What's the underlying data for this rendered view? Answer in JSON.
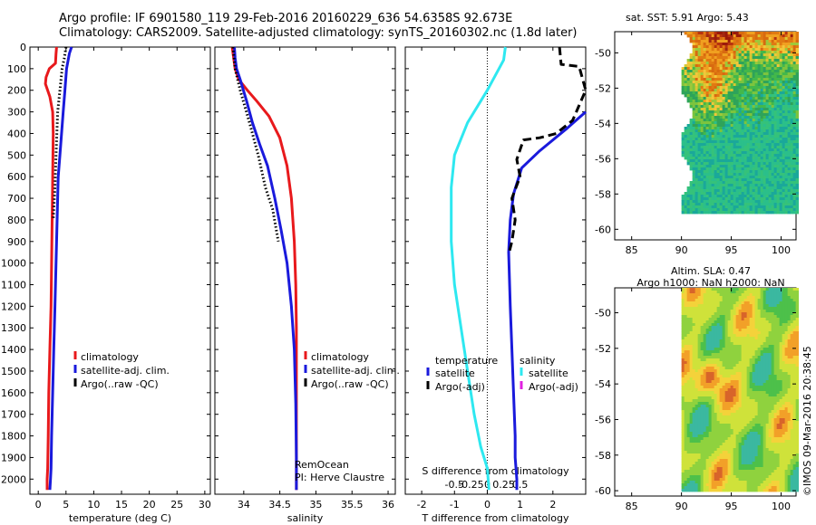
{
  "header": {
    "line1": "Argo profile: IF 6901580_119 29-Feb-2016 20160229_636 54.6358S 92.673E",
    "line2": "Climatology: CARS2009. Satellite-adjusted climatology: synTS_20160302.nc (1.8d later)"
  },
  "colors": {
    "climatology": "#e8191c",
    "satellite": "#1a1adc",
    "argo": "#000000",
    "cyan": "#2ee8f0",
    "magenta": "#e020e0"
  },
  "chart_data": [
    {
      "id": "temperature",
      "type": "line",
      "xlabel": "temperature (deg C)",
      "xlim": [
        -1.5,
        31
      ],
      "xticks": [
        0,
        5,
        10,
        15,
        20,
        25,
        30
      ],
      "ylim": [
        2070,
        0
      ],
      "yticks": [
        0,
        100,
        200,
        300,
        400,
        500,
        600,
        700,
        800,
        900,
        1000,
        1100,
        1200,
        1300,
        1400,
        1500,
        1600,
        1700,
        1800,
        1900,
        2000
      ],
      "series": [
        {
          "name": "climatology",
          "color": "#e8191c",
          "style": "solid",
          "width": 3,
          "x": [
            3.3,
            3.2,
            3.1,
            2.0,
            1.4,
            1.3,
            2.1,
            2.6,
            2.7,
            2.6,
            2.5,
            2.4,
            2.3,
            2.1,
            1.9,
            1.8,
            1.7,
            1.6,
            1.6
          ],
          "y": [
            0,
            30,
            75,
            100,
            140,
            170,
            230,
            300,
            400,
            600,
            800,
            1000,
            1200,
            1400,
            1600,
            1800,
            1950,
            2000,
            2050
          ]
        },
        {
          "name": "satellite-adj. clim.",
          "color": "#1a1adc",
          "style": "solid",
          "width": 3,
          "x": [
            6.0,
            5.6,
            5.1,
            4.8,
            4.5,
            4.2,
            3.9,
            3.6,
            3.4,
            3.2,
            3.0,
            2.8,
            2.6,
            2.4,
            2.3,
            2.2,
            2.1
          ],
          "y": [
            0,
            30,
            100,
            200,
            300,
            400,
            500,
            600,
            800,
            1000,
            1200,
            1400,
            1600,
            1800,
            1950,
            2000,
            2050
          ]
        },
        {
          "name": "Argo(..raw -QC)",
          "color": "#000000",
          "style": "dotted",
          "width": 3,
          "x": [
            5.0,
            4.7,
            4.3,
            3.9,
            3.5,
            3.2,
            3.0,
            2.7
          ],
          "y": [
            0,
            50,
            100,
            200,
            300,
            500,
            650,
            800
          ]
        }
      ],
      "legend": {
        "position": "lower-right",
        "entries": [
          "climatology",
          "satellite-adj. clim.",
          "Argo(..raw -QC)"
        ]
      }
    },
    {
      "id": "salinity",
      "type": "line",
      "xlabel": "salinity",
      "xlim": [
        33.6,
        36.1
      ],
      "xticks": [
        34,
        34.5,
        35,
        35.5,
        36
      ],
      "xticklabels": [
        "34",
        "34.5",
        "35",
        "35.5",
        "36"
      ],
      "ylim": [
        2070,
        0
      ],
      "series": [
        {
          "name": "climatology",
          "color": "#e8191c",
          "style": "solid",
          "width": 3,
          "x": [
            33.84,
            33.86,
            33.88,
            33.93,
            34.05,
            34.18,
            34.35,
            34.5,
            34.6,
            34.66,
            34.7,
            34.72,
            34.73,
            34.73,
            34.73,
            34.73
          ],
          "y": [
            0,
            50,
            100,
            150,
            200,
            250,
            320,
            420,
            550,
            700,
            900,
            1100,
            1300,
            1600,
            1900,
            2050
          ]
        },
        {
          "name": "satellite-adj. clim.",
          "color": "#1a1adc",
          "style": "solid",
          "width": 3,
          "x": [
            33.87,
            33.88,
            33.9,
            33.95,
            34.04,
            34.12,
            34.22,
            34.33,
            34.43,
            34.52,
            34.6,
            34.66,
            34.7,
            34.72,
            34.73,
            34.73
          ],
          "y": [
            0,
            50,
            100,
            150,
            250,
            350,
            450,
            550,
            700,
            850,
            1000,
            1200,
            1400,
            1650,
            1900,
            2050
          ]
        },
        {
          "name": "Argo(..raw -QC)",
          "color": "#000000",
          "style": "dotted",
          "width": 3,
          "x": [
            33.85,
            33.88,
            33.95,
            34.08,
            34.2,
            34.3,
            34.4,
            34.48
          ],
          "y": [
            0,
            100,
            200,
            350,
            500,
            650,
            750,
            900
          ]
        }
      ],
      "legend": {
        "position": "lower-right",
        "entries": [
          "climatology",
          "satellite-adj. clim.",
          "Argo(..raw -QC)"
        ]
      },
      "annotations": [
        "RemOcean",
        "PI: Herve Claustre"
      ]
    },
    {
      "id": "difference",
      "type": "line",
      "xlabel": "T difference from climatology",
      "xlim": [
        -2.5,
        3.0
      ],
      "xticks": [
        -2,
        -1,
        0,
        1,
        2
      ],
      "top_axis_label": "S difference from climatology",
      "top_ticks": [
        -0.5,
        -0.25,
        0,
        0.25,
        0.5
      ],
      "top_ticklabels": [
        "-0.5",
        "-0.25",
        "0",
        "0.25",
        "0.5"
      ],
      "ylim": [
        2070,
        0
      ],
      "series": [
        {
          "name": "salinity satellite",
          "color": "#2ee8f0",
          "style": "solid",
          "width": 3,
          "x": [
            0.55,
            0.5,
            0.0,
            -0.6,
            -1.0,
            -1.1,
            -1.1,
            -1.0,
            -0.8,
            -0.6,
            -0.4,
            -0.2,
            0.0,
            0.05
          ],
          "y": [
            0,
            60,
            200,
            350,
            500,
            650,
            900,
            1100,
            1300,
            1500,
            1700,
            1850,
            1950,
            2050
          ]
        },
        {
          "name": "temperature satellite",
          "color": "#1a1adc",
          "style": "solid",
          "width": 3,
          "x": [
            3.0,
            2.4,
            1.6,
            1.05,
            0.8,
            0.7,
            0.65,
            0.7,
            0.75,
            0.8,
            0.85,
            0.85,
            0.9,
            0.9
          ],
          "y": [
            300,
            380,
            480,
            560,
            680,
            800,
            950,
            1200,
            1400,
            1600,
            1800,
            1900,
            2000,
            2050
          ]
        },
        {
          "name": "temperature Argo(-adj)",
          "color": "#000000",
          "style": "dashed",
          "width": 3,
          "x": [
            2.2,
            2.25,
            2.8,
            3.0,
            2.6,
            2.1,
            1.6,
            1.1,
            0.9,
            1.0,
            0.75,
            0.85,
            0.75,
            0.65
          ],
          "y": [
            0,
            80,
            90,
            200,
            340,
            400,
            420,
            430,
            520,
            600,
            700,
            800,
            900,
            960
          ]
        },
        {
          "name": "salinity Argo(-adj)",
          "color": "#e020e0",
          "style": "solid",
          "width": 3,
          "x": [],
          "y": []
        }
      ],
      "legend": {
        "position": "lower-center",
        "left_header": "temperature",
        "right_header": "salinity",
        "entries": [
          "satellite",
          "Argo(-adj)",
          "satellite",
          "Argo(-adj)"
        ]
      }
    },
    {
      "id": "sst-map",
      "type": "heatmap",
      "title": "sat. SST: 5.91 Argo: 5.43",
      "xticks": [
        85,
        90,
        95,
        100
      ],
      "yticks": [
        -50,
        -52,
        -54,
        -56,
        -58,
        -60
      ],
      "yticklabels": [
        "-50",
        "-52",
        "-54",
        "-56",
        "-58",
        "-60"
      ],
      "xlim": [
        83.3,
        101.5
      ],
      "ylim": [
        -60.6,
        -48.8
      ]
    },
    {
      "id": "sla-map",
      "type": "heatmap",
      "title": "Altim. SLA: 0.47",
      "subtitle": "Argo h1000: NaN h2000: NaN",
      "xticks": [
        85,
        90,
        95,
        100
      ],
      "yticks": [
        -50,
        -52,
        -54,
        -56,
        -58,
        -60
      ],
      "yticklabels": [
        "-50",
        "-52",
        "-54",
        "-56",
        "-58",
        "-60"
      ],
      "xlim": [
        83.3,
        101.5
      ],
      "ylim": [
        -60.3,
        -48.6
      ]
    }
  ],
  "footer": {
    "credit": "©IMOS 09-Mar-2016 20:38:45"
  }
}
